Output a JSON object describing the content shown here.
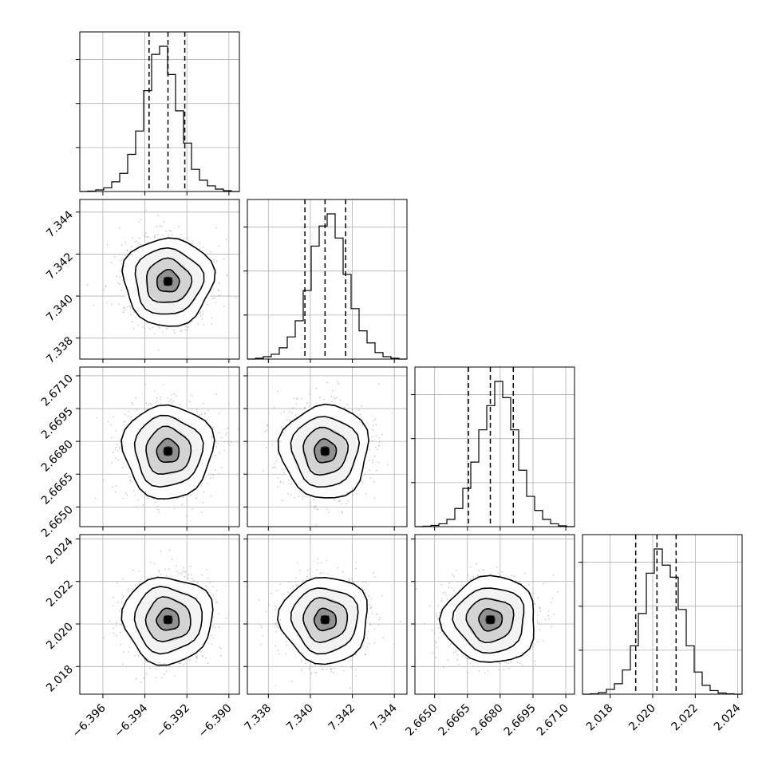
{
  "chart_data": {
    "type": "corner",
    "title": "",
    "parameters": [
      {
        "index": 0,
        "range": [
          -6.3971,
          -6.3895
        ],
        "ticks": [
          -6.396,
          -6.394,
          -6.392,
          -6.39
        ],
        "tick_labels": [
          "−6.396",
          "−6.394",
          "−6.392",
          "−6.390"
        ],
        "quantiles": [
          -6.3938,
          -6.3929,
          -6.3921
        ],
        "peak": -6.3929
      },
      {
        "index": 1,
        "range": [
          7.337,
          7.3446
        ],
        "ticks": [
          7.338,
          7.34,
          7.342,
          7.344
        ],
        "tick_labels": [
          "7.338",
          "7.340",
          "7.342",
          "7.344"
        ],
        "quantiles": [
          7.33974,
          7.3407,
          7.34168
        ],
        "peak": 7.3407
      },
      {
        "index": 2,
        "range": [
          2.6641,
          2.6714
        ],
        "ticks": [
          2.665,
          2.6665,
          2.668,
          2.6695,
          2.671
        ],
        "tick_labels": [
          "2.6650",
          "2.6665",
          "2.6680",
          "2.6695",
          "2.6710"
        ],
        "quantiles": [
          2.66655,
          2.66755,
          2.6686
        ],
        "peak": 2.6676
      },
      {
        "index": 3,
        "range": [
          2.0167,
          2.0242
        ],
        "ticks": [
          2.018,
          2.02,
          2.022,
          2.024
        ],
        "tick_labels": [
          "2.018",
          "2.020",
          "2.022",
          "2.024"
        ],
        "quantiles": [
          2.0192,
          2.0202,
          2.0211
        ],
        "peak": 2.0202
      }
    ],
    "histograms": [
      {
        "param": 0,
        "bin_edges_range": [
          -6.3971,
          -6.3895
        ],
        "counts": [
          0,
          1,
          4,
          9,
          24,
          45,
          92,
          150,
          250,
          340,
          360,
          290,
          200,
          120,
          55,
          28,
          14,
          6,
          2,
          0
        ]
      },
      {
        "param": 1,
        "bin_edges_range": [
          7.337,
          7.3446
        ],
        "counts": [
          0,
          2,
          6,
          12,
          28,
          55,
          95,
          170,
          280,
          330,
          360,
          300,
          210,
          125,
          70,
          40,
          16,
          6,
          2,
          0
        ]
      },
      {
        "param": 2,
        "bin_edges_range": [
          2.6641,
          2.6714
        ],
        "counts": [
          0,
          1,
          3,
          7,
          18,
          45,
          95,
          160,
          240,
          300,
          360,
          320,
          240,
          140,
          75,
          40,
          18,
          7,
          2,
          0
        ]
      },
      {
        "param": 3,
        "bin_edges_range": [
          2.0167,
          2.0242
        ],
        "counts": [
          0,
          1,
          4,
          12,
          26,
          60,
          120,
          200,
          300,
          360,
          320,
          290,
          210,
          120,
          55,
          22,
          9,
          3,
          1,
          0
        ]
      }
    ],
    "pairs": [
      {
        "x": 0,
        "y": 1,
        "center": [
          -6.3929,
          7.3407
        ],
        "sigma": [
          0.00102,
          0.001
        ],
        "correlation": 0.0
      },
      {
        "x": 0,
        "y": 2,
        "center": [
          -6.3929,
          2.66755
        ],
        "sigma": [
          0.00102,
          0.00102
        ],
        "correlation": 0.0
      },
      {
        "x": 1,
        "y": 2,
        "center": [
          7.3407,
          2.66755
        ],
        "sigma": [
          0.001,
          0.00102
        ],
        "correlation": 0.0
      },
      {
        "x": 0,
        "y": 3,
        "center": [
          -6.3929,
          2.0202
        ],
        "sigma": [
          0.00102,
          0.00097
        ],
        "correlation": 0.0
      },
      {
        "x": 1,
        "y": 3,
        "center": [
          7.3407,
          2.0202
        ],
        "sigma": [
          0.001,
          0.00097
        ],
        "correlation": 0.0
      },
      {
        "x": 2,
        "y": 3,
        "center": [
          2.66755,
          2.0202
        ],
        "sigma": [
          0.00102,
          0.00097
        ],
        "correlation": 0.0
      }
    ],
    "contour_levels_sigma": [
      0.5,
      1.0,
      1.5,
      2.0
    ],
    "grid": true,
    "colors": {
      "lines": "#000000",
      "grid": "#b0b0b0",
      "points": "#a8a8a8",
      "density_min": "#ffffff",
      "density_max": "#000000"
    }
  }
}
